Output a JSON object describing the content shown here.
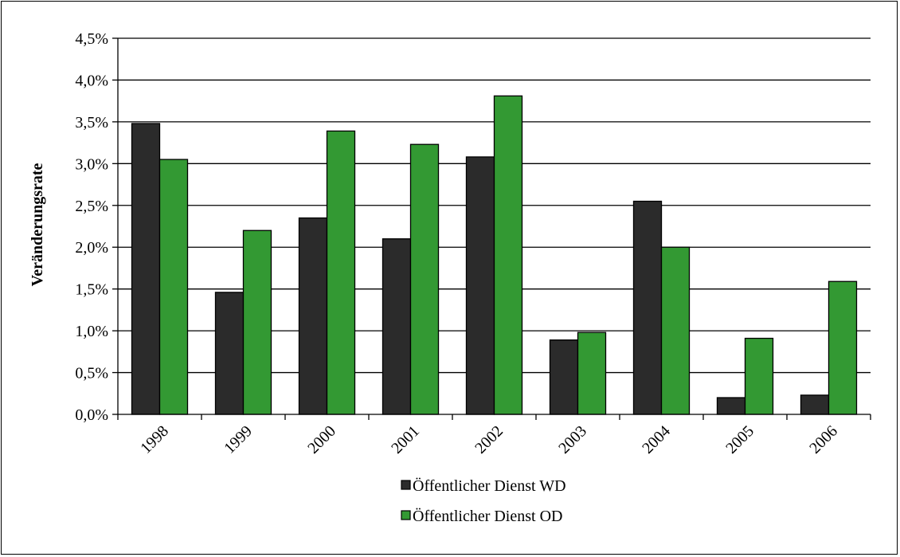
{
  "chart_data": {
    "type": "bar",
    "title": "",
    "xlabel": "",
    "ylabel": "Veränderungsrate",
    "ylim": [
      0,
      4.5
    ],
    "y_ticks": [
      0,
      0.5,
      1.0,
      1.5,
      2.0,
      2.5,
      3.0,
      3.5,
      4.0,
      4.5
    ],
    "y_tick_labels": [
      "0,0%",
      "0,5%",
      "1,0%",
      "1,5%",
      "2,0%",
      "2,5%",
      "3,0%",
      "3,5%",
      "4,0%",
      "4,5%"
    ],
    "categories": [
      "1998",
      "1999",
      "2000",
      "2001",
      "2002",
      "2003",
      "2004",
      "2005",
      "2006"
    ],
    "grid": true,
    "legend_position": "bottom",
    "series": [
      {
        "name": "Öffentlicher Dienst WD",
        "color": "#2b2b2b",
        "values": [
          3.48,
          1.46,
          2.35,
          2.1,
          3.08,
          0.89,
          2.55,
          0.2,
          0.23
        ]
      },
      {
        "name": "Öffentlicher Dienst OD",
        "color": "#339933",
        "values": [
          3.05,
          2.2,
          3.39,
          3.23,
          3.81,
          0.98,
          2.0,
          0.91,
          1.59
        ]
      }
    ]
  }
}
